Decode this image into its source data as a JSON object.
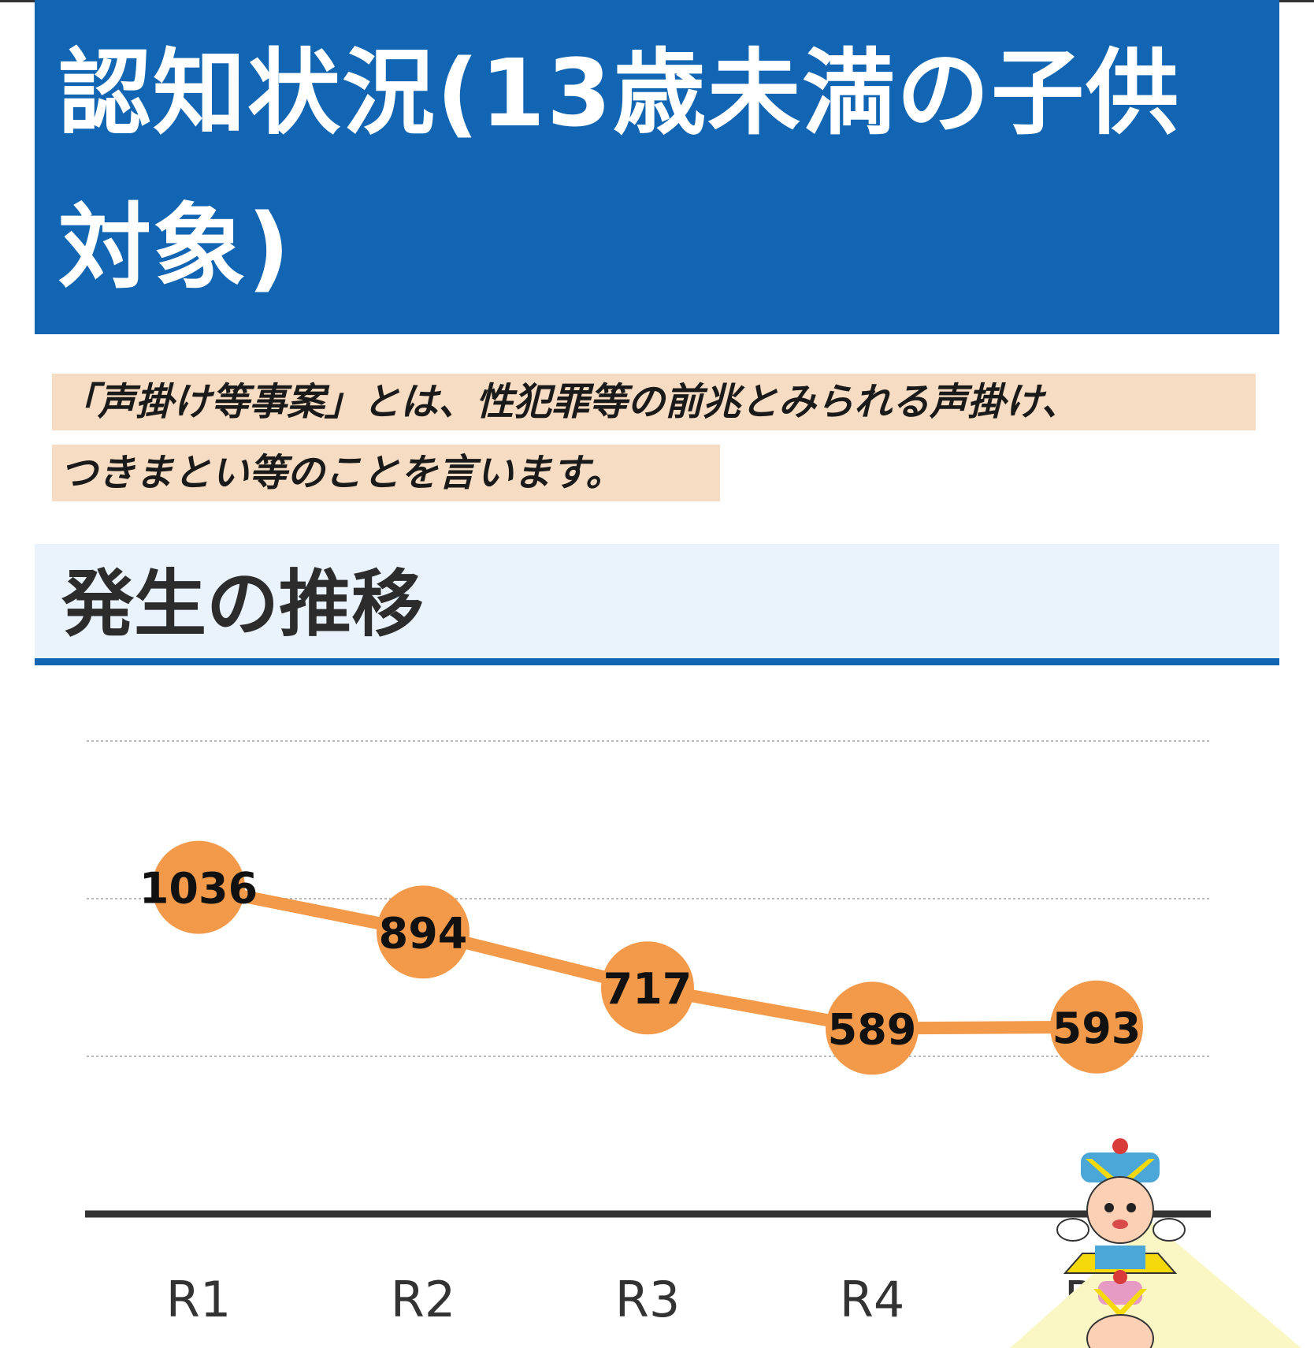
{
  "header": {
    "title": "認知状況(13歳未満の子供対象)"
  },
  "definition": {
    "line1": "「声掛け等事案」とは、性犯罪等の前兆とみられる声掛け、",
    "line2": "つきまとい等のことを言います。"
  },
  "section": {
    "title": "発生の推移"
  },
  "colors": {
    "banner": "#1265b2",
    "highlight": "#f6dcc2",
    "section_bg": "#eaf3fc",
    "series": "#f29a4a"
  },
  "chart_data": {
    "type": "line",
    "categories": [
      "R1",
      "R2",
      "R3",
      "R4",
      "R5"
    ],
    "values": [
      1036,
      894,
      717,
      589,
      593
    ],
    "data_labels": [
      "1036",
      "894",
      "717",
      "589",
      "593"
    ],
    "title": "",
    "xlabel": "",
    "ylabel": "",
    "ylim": [
      0,
      1500
    ],
    "grid": true,
    "legend": "none"
  }
}
